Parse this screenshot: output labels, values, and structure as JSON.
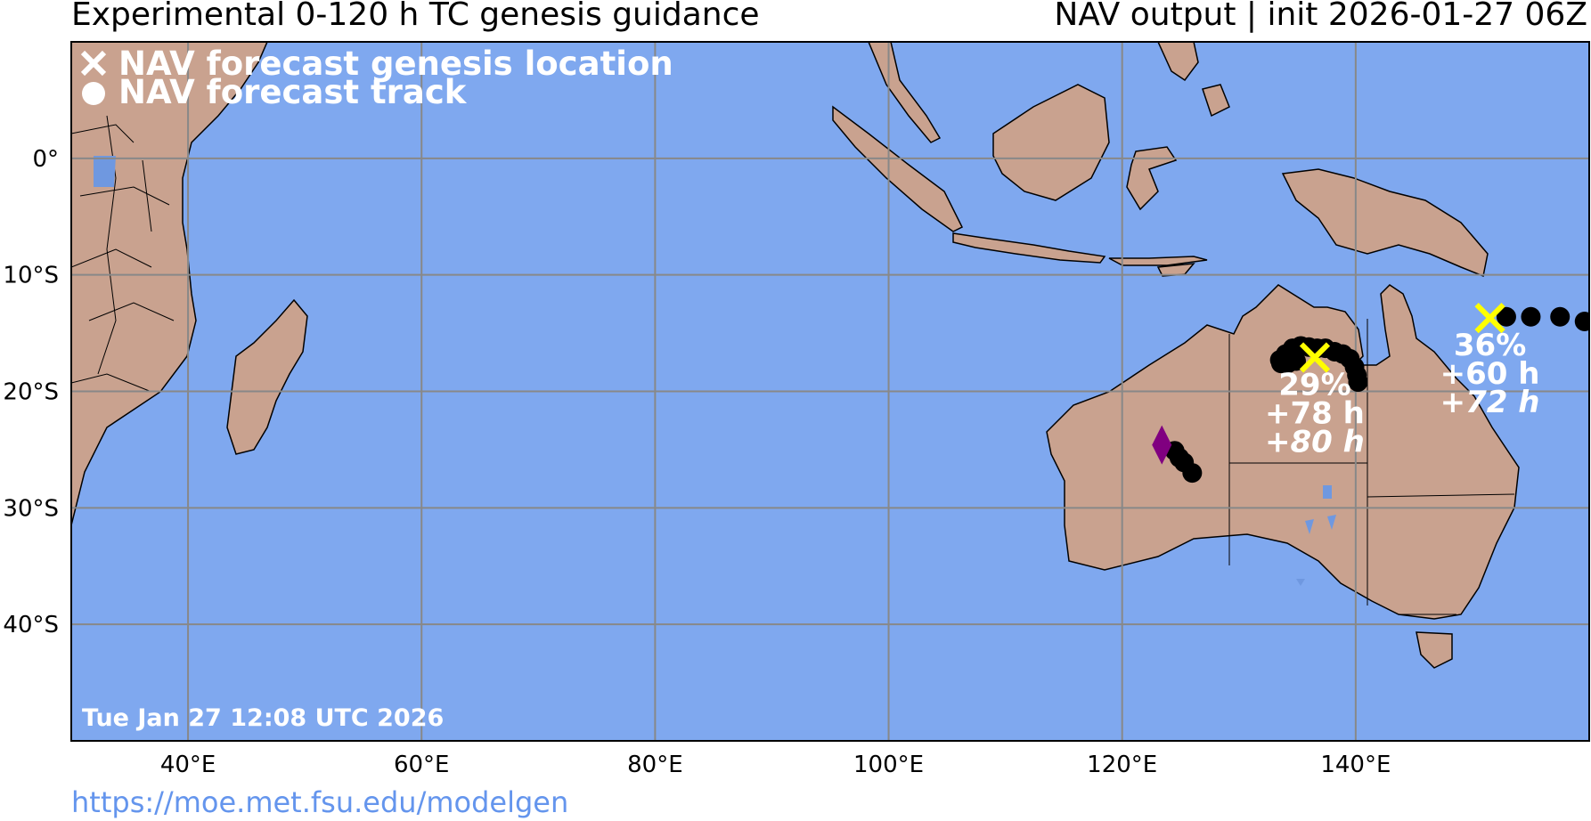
{
  "header": {
    "title_left": "Experimental 0-120 h TC genesis guidance",
    "title_right": "NAV output | init 2026-01-27 06Z"
  },
  "footer": {
    "url": "https://moe.met.fsu.edu/modelgen"
  },
  "map": {
    "region": "Indian Ocean and Australia",
    "extent": {
      "lon": [
        30,
        160
      ],
      "lat": [
        -50,
        10
      ]
    },
    "ocean_color": "#7fa8ef",
    "land_color": "#c9a28f",
    "lake_color": "#6f98e0",
    "gridline_color": "#888888",
    "lon_ticks": [
      {
        "value": 40,
        "label": "40°E"
      },
      {
        "value": 60,
        "label": "60°E"
      },
      {
        "value": 80,
        "label": "80°E"
      },
      {
        "value": 100,
        "label": "100°E"
      },
      {
        "value": 120,
        "label": "120°E"
      },
      {
        "value": 140,
        "label": "140°E"
      }
    ],
    "lat_ticks": [
      {
        "value": 0,
        "label": "0°"
      },
      {
        "value": -10,
        "label": "10°S"
      },
      {
        "value": -20,
        "label": "20°S"
      },
      {
        "value": -30,
        "label": "30°S"
      },
      {
        "value": -40,
        "label": "40°S"
      }
    ],
    "legend": [
      {
        "symbol": "x-icon",
        "label": "NAV forecast genesis location"
      },
      {
        "symbol": "dot-icon",
        "label": "NAV forecast track"
      }
    ],
    "timestamp": "Tue Jan 27 12:08 UTC 2026",
    "genesis_color": "#ffff00",
    "track_color": "#000000",
    "storms": [
      {
        "genesis": {
          "lon": 136.5,
          "lat": -17.1
        },
        "probability": "29%",
        "genesis_time": "+78 h",
        "end_time": "+80 h",
        "track": [
          {
            "lon": 133.5,
            "lat": -17.3
          },
          {
            "lon": 134.0,
            "lat": -16.8
          },
          {
            "lon": 134.6,
            "lat": -16.3
          },
          {
            "lon": 135.3,
            "lat": -16.1
          },
          {
            "lon": 136.0,
            "lat": -16.2
          },
          {
            "lon": 136.7,
            "lat": -16.3
          },
          {
            "lon": 137.4,
            "lat": -16.3
          },
          {
            "lon": 138.2,
            "lat": -16.6
          },
          {
            "lon": 138.9,
            "lat": -16.8
          },
          {
            "lon": 139.5,
            "lat": -17.2
          },
          {
            "lon": 139.9,
            "lat": -17.9
          },
          {
            "lon": 140.1,
            "lat": -18.6
          },
          {
            "lon": 140.2,
            "lat": -19.2
          },
          {
            "lon": 133.6,
            "lat": -17.6
          },
          {
            "lon": 134.2,
            "lat": -17.6
          },
          {
            "lon": 134.9,
            "lat": -17.4
          }
        ]
      },
      {
        "genesis": {
          "lon": 151.5,
          "lat": -13.7
        },
        "probability": "36%",
        "genesis_time": "+60 h",
        "end_time": "+72 h",
        "track": [
          {
            "lon": 152.9,
            "lat": -13.6
          },
          {
            "lon": 155.0,
            "lat": -13.6
          },
          {
            "lon": 157.5,
            "lat": -13.6
          },
          {
            "lon": 159.6,
            "lat": -14.0
          }
        ]
      },
      {
        "genesis_marker": {
          "lon": 123.4,
          "lat": -24.6,
          "color": "#800080",
          "shape": "diamond"
        },
        "track": [
          {
            "lon": 124.5,
            "lat": -25.1
          },
          {
            "lon": 124.9,
            "lat": -25.7
          },
          {
            "lon": 125.3,
            "lat": -26.1
          },
          {
            "lon": 126.0,
            "lat": -27.0
          }
        ]
      }
    ]
  }
}
